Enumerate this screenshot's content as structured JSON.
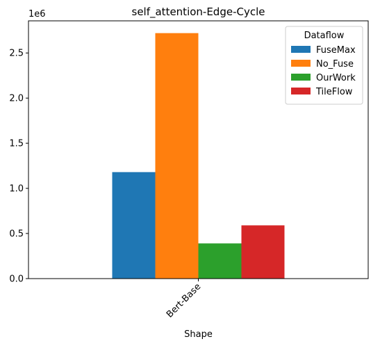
{
  "chart_data": {
    "type": "bar",
    "title": "self_attention-Edge-Cycle",
    "xlabel": "Shape",
    "ylabel": "",
    "categories": [
      "Bert-Base"
    ],
    "series": [
      {
        "name": "FuseMax",
        "values": [
          1180000
        ],
        "color": "#1f77b4"
      },
      {
        "name": "No_Fuse",
        "values": [
          2720000
        ],
        "color": "#ff7f0e"
      },
      {
        "name": "OurWork",
        "values": [
          390000
        ],
        "color": "#2ca02c"
      },
      {
        "name": "TileFlow",
        "values": [
          590000
        ],
        "color": "#d62728"
      }
    ],
    "ylim": [
      0,
      2856000
    ],
    "yticks": [
      0,
      0.5,
      1.0,
      1.5,
      2.0,
      2.5
    ],
    "ytick_labels": [
      "0.0",
      "0.5",
      "1.0",
      "1.5",
      "2.0",
      "2.5"
    ],
    "y_multiplier_label": "1e6",
    "legend_title": "Dataflow",
    "legend_position": "top-right",
    "grid": false
  }
}
